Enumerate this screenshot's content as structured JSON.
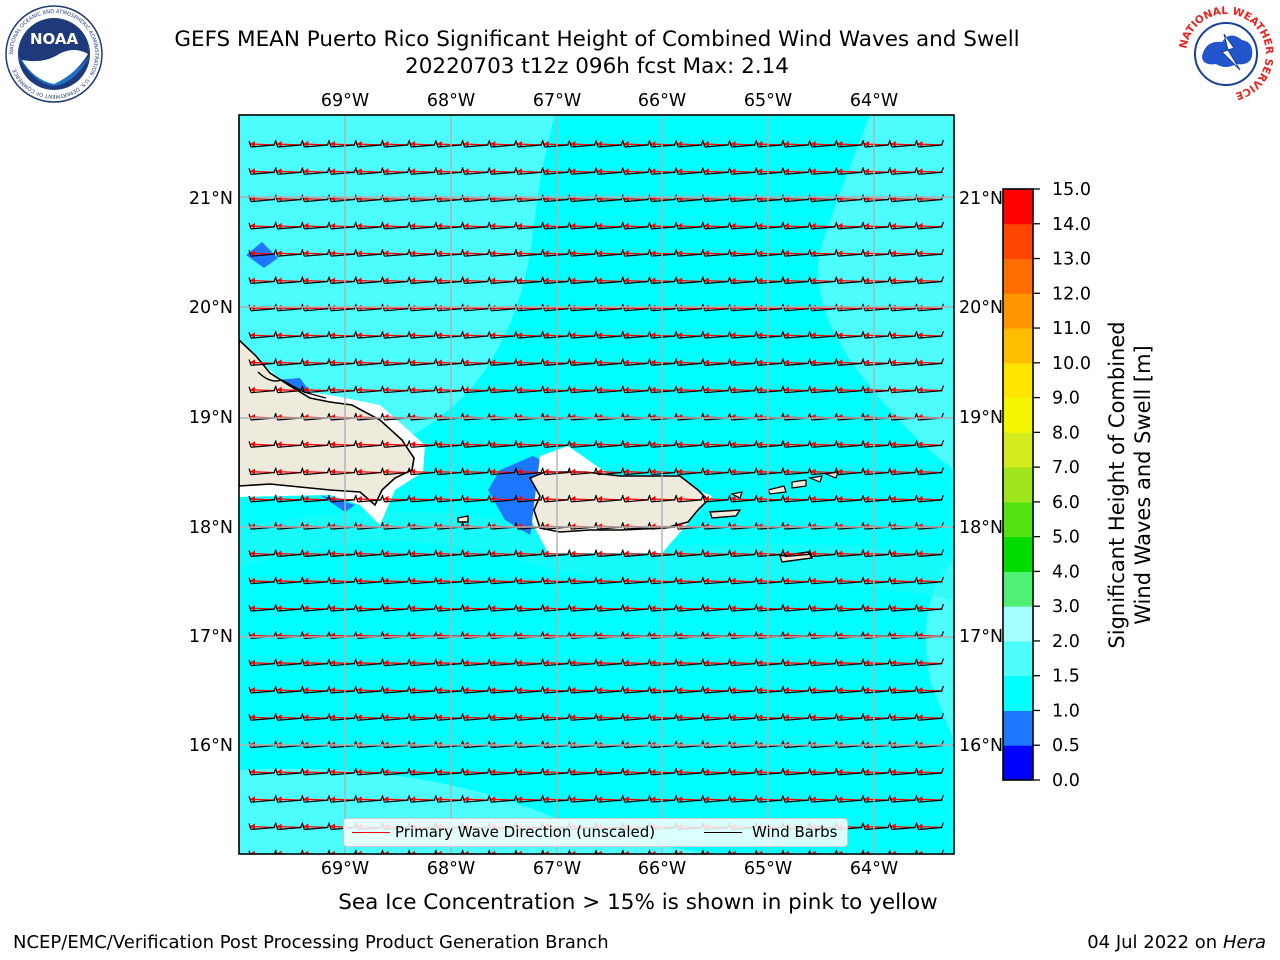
{
  "header": {
    "title_line1": "GEFS MEAN Puerto Rico Significant Height of Combined Wind Waves and Swell",
    "title_line2": "20220703 t12z 096h fcst   Max: 2.14"
  },
  "logos": {
    "left": {
      "icon": "noaa-logo",
      "text": "NOAA",
      "ring_text": "NATIONAL OCEANIC AND ATMOSPHERIC ADMINISTRATION · U.S. DEPARTMENT OF COMMERCE"
    },
    "right": {
      "icon": "nws-logo",
      "ring_text": "NATIONAL WEATHER SERVICE"
    }
  },
  "map": {
    "lon_labels": [
      "69°W",
      "68°W",
      "67°W",
      "66°W",
      "65°W",
      "64°W"
    ],
    "lat_labels": [
      "21°N",
      "20°N",
      "19°N",
      "18°N",
      "17°N",
      "16°N"
    ],
    "lon_range": [
      -70.0,
      -63.3
    ],
    "lat_range": [
      15.0,
      21.8
    ],
    "grid": true,
    "colors": {
      "land": "#efebdc",
      "ocean_main": "#00ffff",
      "ocean_light": "#4dfdfd",
      "low": "#2a7fff",
      "grid": "#b0b0b0",
      "wave_arrow": "#ff0000",
      "barb": "#000000"
    }
  },
  "legend": {
    "items": [
      {
        "label": "Primary Wave Direction (unscaled)",
        "color": "#ff0000"
      },
      {
        "label": "Wind Barbs",
        "color": "#000000"
      }
    ]
  },
  "colorbar": {
    "label_line1": "Significant Height of Combined",
    "label_line2": "Wind Waves and Swell [m]",
    "ticks": [
      "0.0",
      "0.5",
      "1.0",
      "1.5",
      "2.0",
      "3.0",
      "4.0",
      "5.0",
      "6.0",
      "7.0",
      "8.0",
      "9.0",
      "10.0",
      "11.0",
      "12.0",
      "13.0",
      "14.0",
      "15.0"
    ],
    "colors": [
      "#0000ff",
      "#1e78ff",
      "#00ffff",
      "#4dfdfd",
      "#a6fefe",
      "#50f077",
      "#00dc00",
      "#55e10f",
      "#a0e61e",
      "#d2ec1e",
      "#f5f500",
      "#ffe600",
      "#ffbe00",
      "#ff9600",
      "#ff6e00",
      "#ff4600",
      "#ff0000"
    ]
  },
  "caption": "Sea Ice Concentration > 15% is shown in pink to yellow",
  "footer": {
    "left": "NCEP/EMC/Verification Post Processing Product Generation Branch",
    "right_date": "04 Jul 2022 on ",
    "right_host": "Hera"
  }
}
